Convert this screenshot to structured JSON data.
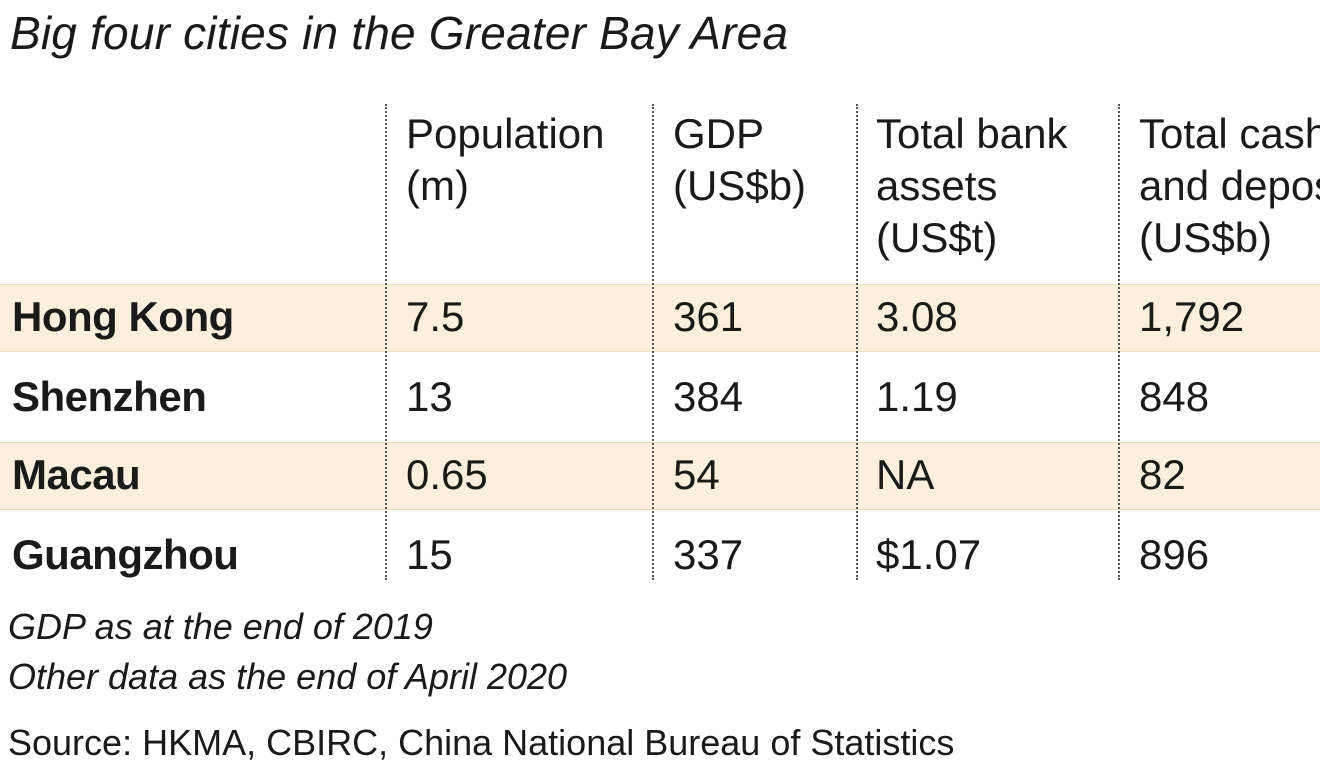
{
  "chart_data": {
    "type": "table",
    "title": "Big four cities in the Greater Bay Area",
    "columns": [
      {
        "lines": [
          "Population",
          "(m)"
        ]
      },
      {
        "lines": [
          "GDP",
          "(US$b)"
        ]
      },
      {
        "lines": [
          "Total bank",
          "assets",
          "(US$t)"
        ]
      },
      {
        "lines": [
          "Total cash",
          "and deposits",
          "(US$b)"
        ]
      }
    ],
    "rows": [
      {
        "city": "Hong Kong",
        "values": [
          "7.5",
          "361",
          "3.08",
          "1,792"
        ],
        "highlight": true
      },
      {
        "city": "Shenzhen",
        "values": [
          "13",
          "384",
          "1.19",
          "848"
        ],
        "highlight": false
      },
      {
        "city": "Macau",
        "values": [
          "0.65",
          "54",
          "NA",
          "82"
        ],
        "highlight": true
      },
      {
        "city": "Guangzhou",
        "values": [
          "15",
          "337",
          "$1.07",
          "896"
        ],
        "highlight": false
      }
    ],
    "notes": [
      "GDP as at the end of 2019",
      "Other data as the end of April 2020"
    ],
    "source": "Source: HKMA, CBIRC, China National Bureau of Statistics"
  },
  "colors": {
    "highlight_band": "#fcf0dd",
    "text": "#1a1a1a",
    "divider": "#555555"
  }
}
